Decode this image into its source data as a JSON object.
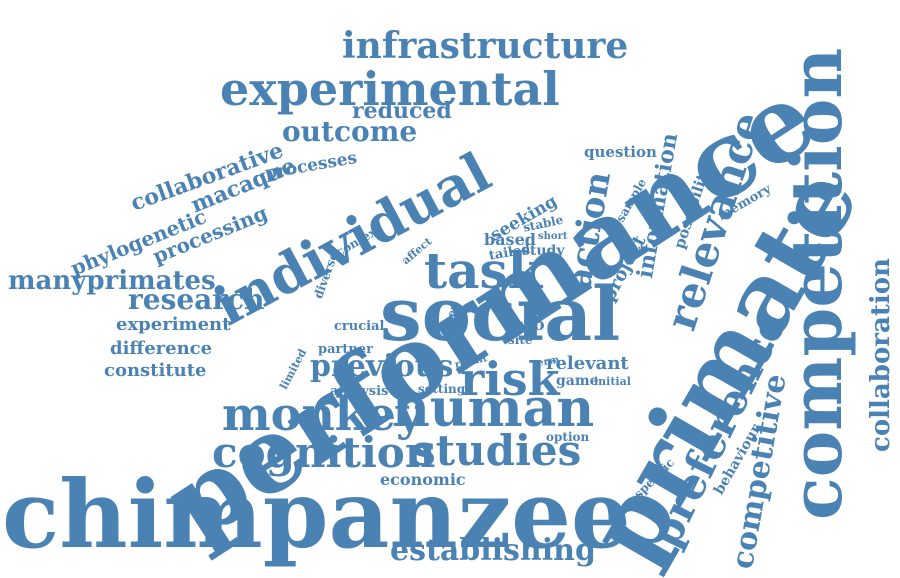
{
  "color": "#4a82b4",
  "words": {
    "chimpanzee": "chimpanzee",
    "performance": "performance",
    "primate": "primate",
    "competition": "competition",
    "social": "social",
    "individual": "individual",
    "human": "human",
    "monkey": "monkey",
    "cognition": "cognition",
    "studies": "studies",
    "task": "task",
    "risk": "risk",
    "experimental": "experimental",
    "infrastructure": "infrastructure",
    "preference": "preference",
    "relevance": "relevance",
    "competitive": "competitive",
    "collaboration": "collaboration",
    "establishing": "establishing",
    "outcome": "outcome",
    "reduced": "reduced",
    "action": "action",
    "information": "information",
    "previous": "previous",
    "research": "research",
    "manyprimates": "manyprimates",
    "collaborative": "collaborative",
    "processes": "processes",
    "phylogenetic": "phylogenetic",
    "macaque": "macaque",
    "processing": "processing",
    "experiment": "experiment",
    "difference": "difference",
    "constitute": "constitute",
    "economic": "economic",
    "analysis": "analysis",
    "setting": "setting",
    "relevant": "relevant",
    "game": "game",
    "initial": "initial",
    "question": "question",
    "seeking": "seeking",
    "based": "based",
    "study": "study",
    "tailed": "tailed",
    "stable": "stable",
    "short": "short",
    "project": "project",
    "possibility": "possibility",
    "sample": "sample",
    "memory": "memory",
    "context": "context",
    "diverse": "diverse",
    "affect": "affect",
    "crucial": "crucial",
    "partner": "partner",
    "zero": "zero",
    "site": "site",
    "open": "open",
    "type": "type",
    "more": "more",
    "limited": "limited",
    "result": "result",
    "term": "term",
    "option": "option",
    "specific": "specific",
    "behaviour": "behaviour"
  }
}
